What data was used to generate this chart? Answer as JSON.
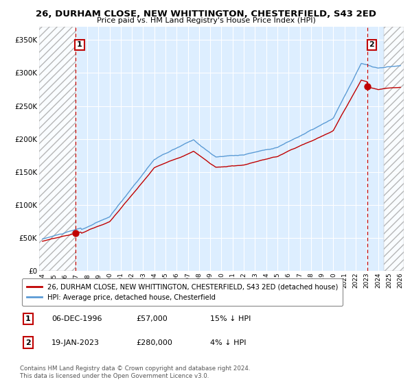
{
  "title": "26, DURHAM CLOSE, NEW WHITTINGTON, CHESTERFIELD, S43 2ED",
  "subtitle": "Price paid vs. HM Land Registry's House Price Index (HPI)",
  "ylim": [
    0,
    370000
  ],
  "xlim_start": 1993.7,
  "xlim_end": 2026.3,
  "yticks": [
    0,
    50000,
    100000,
    150000,
    200000,
    250000,
    300000,
    350000
  ],
  "ytick_labels": [
    "£0",
    "£50K",
    "£100K",
    "£150K",
    "£200K",
    "£250K",
    "£300K",
    "£350K"
  ],
  "xticks": [
    1994,
    1995,
    1996,
    1997,
    1998,
    1999,
    2000,
    2001,
    2002,
    2003,
    2004,
    2005,
    2006,
    2007,
    2008,
    2009,
    2010,
    2011,
    2012,
    2013,
    2014,
    2015,
    2016,
    2017,
    2018,
    2019,
    2020,
    2021,
    2022,
    2023,
    2024,
    2025,
    2026
  ],
  "xtick_labels": [
    "1994",
    "1995",
    "1996",
    "1997",
    "1998",
    "1999",
    "2000",
    "2001",
    "2002",
    "2003",
    "2004",
    "2005",
    "2006",
    "2007",
    "2008",
    "2009",
    "2010",
    "2011",
    "2012",
    "2013",
    "2014",
    "2015",
    "2016",
    "2017",
    "2018",
    "2019",
    "2020",
    "2021",
    "2022",
    "2023",
    "2024",
    "2025",
    "2026"
  ],
  "hpi_color": "#5b9bd5",
  "price_color": "#c00000",
  "chart_bg": "#ddeeff",
  "point1_x": 1996.93,
  "point1_y": 57000,
  "point1_label": "1",
  "point1_date": "06-DEC-1996",
  "point1_price": "£57,000",
  "point1_hpi": "15% ↓ HPI",
  "point2_x": 2023.05,
  "point2_y": 280000,
  "point2_label": "2",
  "point2_date": "19-JAN-2023",
  "point2_price": "£280,000",
  "point2_hpi": "4% ↓ HPI",
  "legend_label1": "26, DURHAM CLOSE, NEW WHITTINGTON, CHESTERFIELD, S43 2ED (detached house)",
  "legend_label2": "HPI: Average price, detached house, Chesterfield",
  "footnote": "Contains HM Land Registry data © Crown copyright and database right 2024.\nThis data is licensed under the Open Government Licence v3.0.",
  "background_color": "#ffffff"
}
